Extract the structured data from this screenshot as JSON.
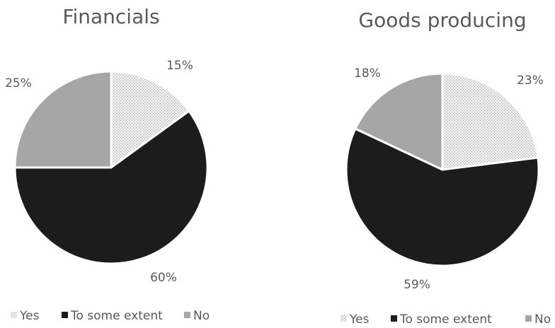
{
  "chart_data": [
    {
      "type": "pie",
      "title": "Financials",
      "slices": [
        {
          "label": "Yes",
          "value": 15,
          "display": "15%"
        },
        {
          "label": "To some extent",
          "value": 60,
          "display": "60%"
        },
        {
          "label": "No",
          "value": 25,
          "display": "25%"
        }
      ],
      "legend": {
        "position": "bottom",
        "entries": [
          "Yes",
          "To some extent",
          "No"
        ]
      }
    },
    {
      "type": "pie",
      "title": "Goods producing",
      "slices": [
        {
          "label": "Yes",
          "value": 23,
          "display": "23%"
        },
        {
          "label": "To some extent",
          "value": 59,
          "display": "59%"
        },
        {
          "label": "No",
          "value": 18,
          "display": "18%"
        }
      ],
      "legend": {
        "position": "bottom",
        "entries": [
          "Yes",
          "To some extent",
          "No"
        ]
      }
    }
  ],
  "colors": {
    "yes": "#ededed",
    "yes_dots": "#9a9a9a",
    "to_some_extent": "#1c1c1c",
    "no": "#a6a6a6",
    "text": "#595959"
  }
}
